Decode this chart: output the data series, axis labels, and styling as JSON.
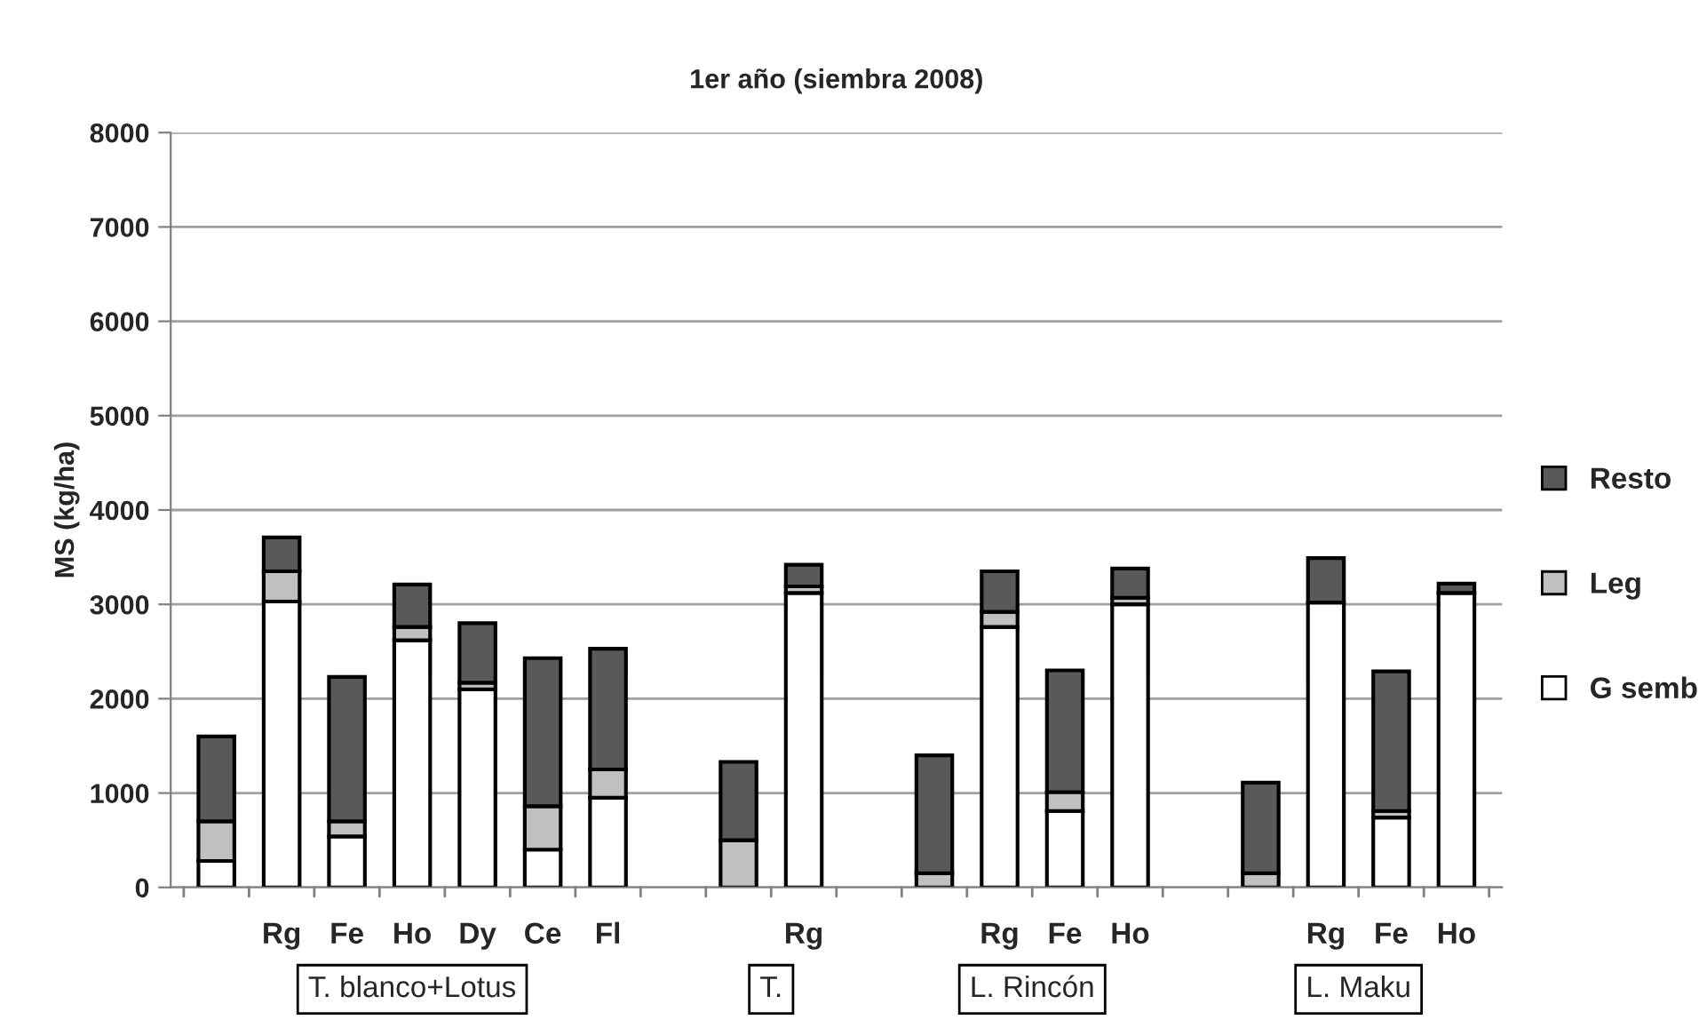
{
  "chart_data": {
    "type": "bar",
    "title": "1er año (siembra 2008)",
    "ylabel": "MS (kg/ha)",
    "categories": [
      null,
      "Rg",
      "Fe",
      "Ho",
      "Dy",
      "Ce",
      "Fl",
      null,
      null,
      "Rg",
      null,
      null,
      "Rg",
      "Fe",
      "Ho",
      null,
      null,
      "Rg",
      "Fe",
      "Ho"
    ],
    "stacked": true,
    "series": [
      {
        "name": "G semb",
        "color": "#ffffff",
        "values": [
          280,
          3030,
          540,
          2620,
          2100,
          400,
          950,
          null,
          0,
          3120,
          null,
          0,
          2760,
          810,
          3000,
          null,
          0,
          3020,
          740,
          3120
        ]
      },
      {
        "name": "Leg",
        "color": "#c0c0c0",
        "values": [
          420,
          320,
          160,
          140,
          70,
          460,
          300,
          null,
          500,
          70,
          null,
          150,
          160,
          200,
          70,
          null,
          150,
          null,
          70,
          null
        ]
      },
      {
        "name": "Resto",
        "color": "#595959",
        "values": [
          900,
          360,
          1530,
          450,
          630,
          1570,
          1280,
          null,
          830,
          230,
          null,
          1250,
          430,
          1290,
          310,
          null,
          960,
          470,
          1480,
          100
        ]
      }
    ],
    "annotations": [
      "T. blanco+Lotus",
      "T.",
      "L. Rincón",
      "L. Maku"
    ],
    "ylim": [
      0,
      8000
    ],
    "yticks": [
      0,
      1000,
      2000,
      3000,
      4000,
      5000,
      6000,
      7000,
      8000
    ],
    "grid": "y",
    "legend": "right"
  }
}
